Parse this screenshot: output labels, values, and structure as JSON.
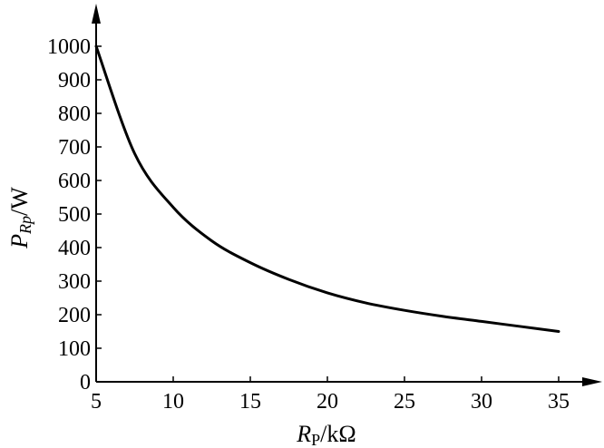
{
  "chart_data": {
    "type": "line",
    "title": "",
    "xlabel": {
      "main": "R",
      "sub": "P",
      "unit": "/kΩ"
    },
    "ylabel": {
      "main": "P",
      "sub": "Rp",
      "unit": "/W"
    },
    "xlim": [
      5,
      35
    ],
    "ylim": [
      0,
      1000
    ],
    "xticks": [
      5,
      10,
      15,
      20,
      25,
      30,
      35
    ],
    "yticks": [
      0,
      100,
      200,
      300,
      400,
      500,
      600,
      700,
      800,
      900,
      1000
    ],
    "grid": false,
    "series": [
      {
        "x": [
          5,
          7.5,
          10,
          12.5,
          15,
          17.5,
          20,
          22.5,
          25,
          27.5,
          30,
          32.5,
          35
        ],
        "y": [
          1000,
          680,
          520,
          420,
          355,
          305,
          265,
          235,
          213,
          195,
          180,
          165,
          150
        ]
      }
    ]
  }
}
